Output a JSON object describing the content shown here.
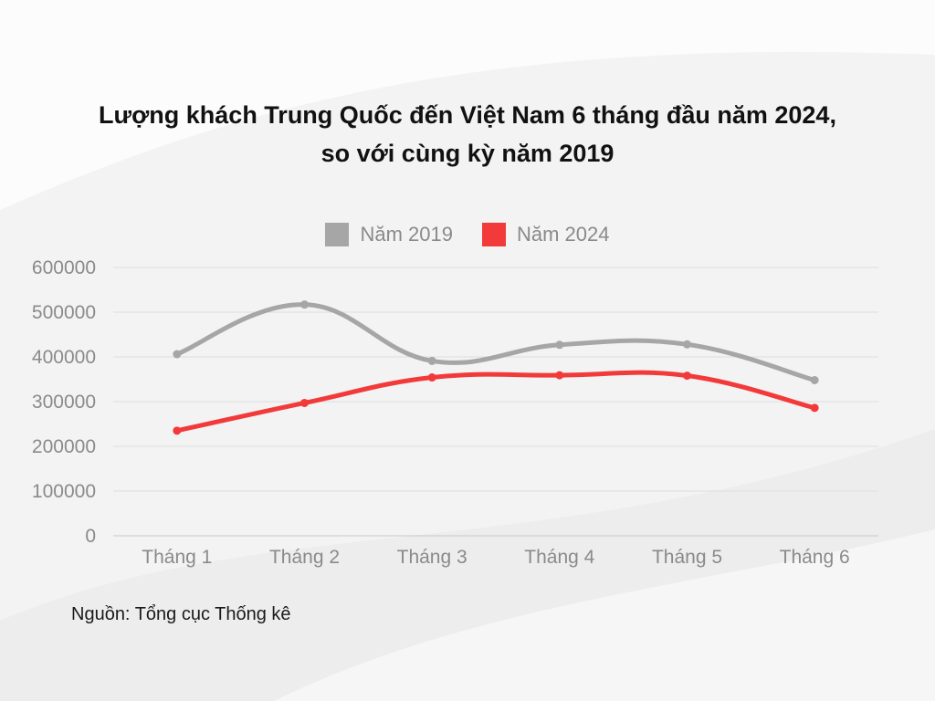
{
  "title_line1": "Lượng khách Trung Quốc đến Việt Nam 6 tháng đầu năm 2024,",
  "title_line2": "so với cùng kỳ năm 2019",
  "source": "Nguồn: Tổng cục Thống kê",
  "colors": {
    "series_2019": "#a6a6a6",
    "series_2024": "#f33a3a",
    "grid": "#dedede"
  },
  "chart_data": {
    "type": "line",
    "categories": [
      "Tháng 1",
      "Tháng 2",
      "Tháng 3",
      "Tháng 4",
      "Tháng 5",
      "Tháng 6"
    ],
    "series": [
      {
        "name": "Năm 2019",
        "values": [
          406000,
          517000,
          391000,
          427000,
          428000,
          348000
        ]
      },
      {
        "name": "Năm 2024",
        "values": [
          235000,
          297000,
          354000,
          359000,
          358000,
          286000
        ]
      }
    ],
    "yticks": [
      "0",
      "100000",
      "200000",
      "300000",
      "400000",
      "500000",
      "600000"
    ],
    "ylim": [
      0,
      600000
    ],
    "grid": true,
    "legend_position": "top-center",
    "smooth": true
  }
}
